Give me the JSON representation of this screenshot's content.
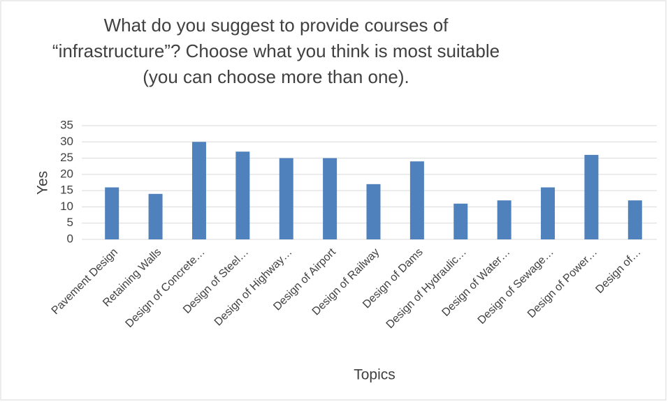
{
  "chart_data": {
    "type": "bar",
    "title": "What do you suggest to provide courses of\n“infrastructure”? Choose what you think is most suitable\n(you can choose more than one).",
    "x_label": "Topics",
    "y_label": "Yes",
    "categories": [
      "Pavement Design",
      "Retaining Walls",
      "Design of Concrete…",
      "Design of Steel…",
      "Design of Highway…",
      "Design of Airport",
      "Design of Railway",
      "Design of Dams",
      "Design of Hydraulic…",
      "Design of Water…",
      "Design of Sewage…",
      "Design of Power…",
      "Design of…"
    ],
    "values": [
      16,
      14,
      30,
      27,
      25,
      25,
      17,
      24,
      11,
      12,
      16,
      26,
      12
    ],
    "color": "#4f81bd",
    "ylim": [
      0,
      35
    ],
    "yticks": [
      0,
      5,
      10,
      15,
      20,
      25,
      30,
      35
    ],
    "grid": true
  }
}
